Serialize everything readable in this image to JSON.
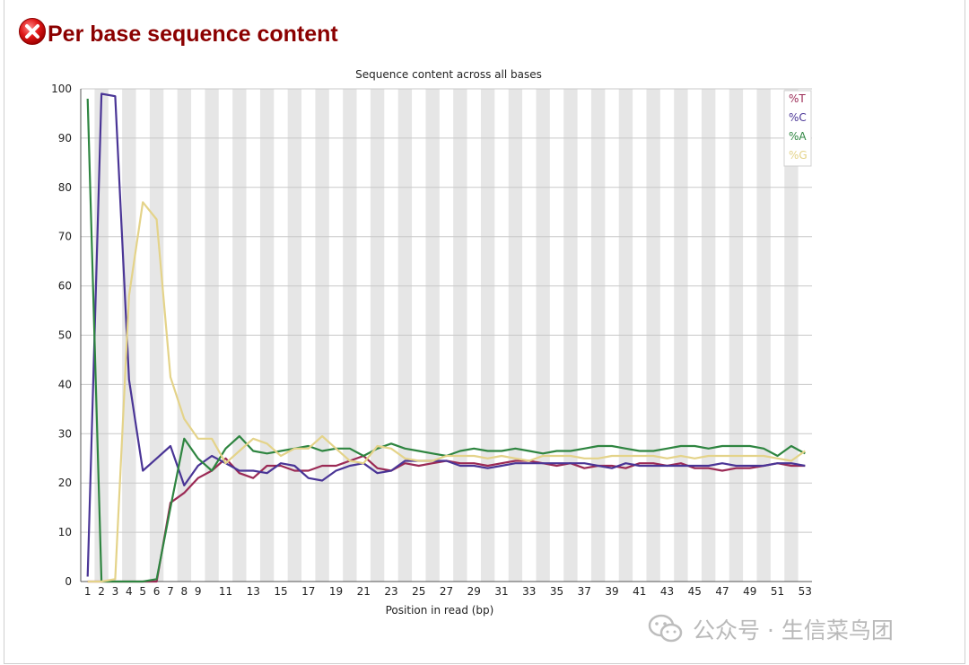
{
  "page": {
    "heading": "Per base sequence content",
    "watermark": "公众号 · 生信菜鸟团"
  },
  "colors": {
    "heading": "#8b0000",
    "T": "#9b2a55",
    "C": "#4a3596",
    "A": "#2e8540",
    "G": "#e4d389",
    "band": "#e6e6e6",
    "grid": "#c8c8c8"
  },
  "icons": {
    "status": "error-x-icon",
    "watermark": "wechat-icon"
  },
  "chart_data": {
    "type": "line",
    "title": "Sequence content across all bases",
    "xlabel": "Position in read (bp)",
    "ylabel": "",
    "ylim": [
      0,
      100
    ],
    "yticks": [
      0,
      10,
      20,
      30,
      40,
      50,
      60,
      70,
      80,
      90,
      100
    ],
    "x": [
      1,
      2,
      3,
      4,
      5,
      6,
      7,
      8,
      9,
      10,
      11,
      12,
      13,
      14,
      15,
      16,
      17,
      18,
      19,
      20,
      21,
      22,
      23,
      24,
      25,
      26,
      27,
      28,
      29,
      30,
      31,
      32,
      33,
      34,
      35,
      36,
      37,
      38,
      39,
      40,
      41,
      42,
      43,
      44,
      45,
      46,
      47,
      48,
      49,
      50,
      51,
      52,
      53
    ],
    "xticklabels": [
      "1",
      "2",
      "3",
      "4",
      "5",
      "6",
      "7",
      "8",
      "9",
      "11",
      "13",
      "15",
      "17",
      "19",
      "21",
      "23",
      "25",
      "27",
      "29",
      "31",
      "33",
      "35",
      "37",
      "39",
      "41",
      "43",
      "45",
      "47",
      "49",
      "51",
      "53"
    ],
    "xticks": [
      1,
      2,
      3,
      4,
      5,
      6,
      7,
      8,
      9,
      11,
      13,
      15,
      17,
      19,
      21,
      23,
      25,
      27,
      29,
      31,
      33,
      35,
      37,
      39,
      41,
      43,
      45,
      47,
      49,
      51,
      53
    ],
    "grid": true,
    "legend_position": "top-right",
    "series": [
      {
        "name": "%T",
        "color": "#9b2a55",
        "values": [
          0,
          0,
          0,
          0,
          0,
          0,
          16,
          18,
          21,
          22.5,
          25,
          22,
          21,
          23.5,
          23.5,
          22.5,
          22.5,
          23.5,
          23.5,
          24.5,
          25.5,
          23,
          22.5,
          24,
          23.5,
          24,
          24.5,
          24,
          24,
          23.5,
          24,
          24.5,
          24.5,
          24,
          23.5,
          24,
          23,
          23.5,
          23.5,
          23,
          24,
          24,
          23.5,
          24,
          23,
          23,
          22.5,
          23,
          23,
          23.5,
          24,
          23.5,
          23.5
        ]
      },
      {
        "name": "%C",
        "color": "#4a3596",
        "values": [
          1,
          99,
          98.5,
          41,
          22.5,
          25,
          27.5,
          19.5,
          23.5,
          25.5,
          24,
          22.5,
          22.5,
          22,
          24,
          23.5,
          21,
          20.5,
          22.5,
          23.5,
          24,
          22,
          22.5,
          24.5,
          24.5,
          24.5,
          24.5,
          23.5,
          23.5,
          23,
          23.5,
          24,
          24,
          24,
          24,
          24,
          24,
          23.5,
          23,
          24,
          23.5,
          23.5,
          23.5,
          23.5,
          23.5,
          23.5,
          24,
          23.5,
          23.5,
          23.5,
          24,
          24,
          23.5
        ]
      },
      {
        "name": "%A",
        "color": "#2e8540",
        "values": [
          98,
          0,
          0,
          0,
          0,
          0.5,
          15,
          29,
          25,
          22.5,
          27,
          29.5,
          26.5,
          26,
          26.5,
          27,
          27.5,
          26.5,
          27,
          27,
          25.5,
          27,
          28,
          27,
          26.5,
          26,
          25.5,
          26.5,
          27,
          26.5,
          26.5,
          27,
          26.5,
          26,
          26.5,
          26.5,
          27,
          27.5,
          27.5,
          27,
          26.5,
          26.5,
          27,
          27.5,
          27.5,
          27,
          27.5,
          27.5,
          27.5,
          27,
          25.5,
          27.5,
          26
        ]
      },
      {
        "name": "%G",
        "color": "#e4d389",
        "values": [
          0,
          0,
          0.5,
          58,
          77,
          73.5,
          41.5,
          33,
          29,
          29,
          24,
          26.5,
          29,
          28,
          25.5,
          27,
          27,
          29.5,
          27,
          24.5,
          24,
          27.5,
          27,
          25,
          24.5,
          24.5,
          25.5,
          25.5,
          25.5,
          25,
          25.5,
          25,
          24.5,
          25.5,
          25.5,
          25.5,
          25,
          25,
          25.5,
          25.5,
          25.5,
          25.5,
          25,
          25.5,
          25,
          25.5,
          25.5,
          25.5,
          25.5,
          25.5,
          25,
          24.5,
          26.5
        ]
      }
    ]
  }
}
